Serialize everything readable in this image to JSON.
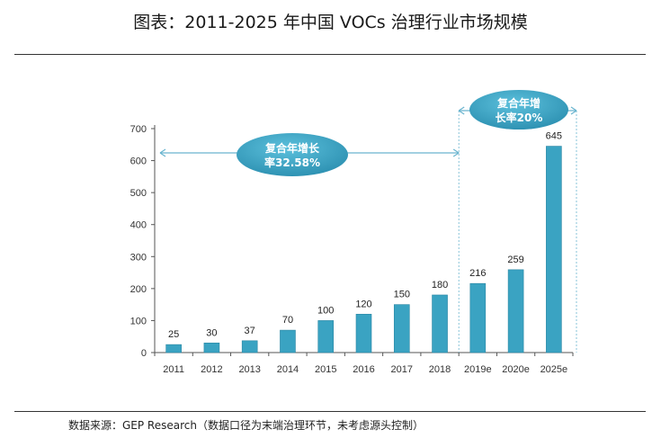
{
  "title": "图表：2011-2025 年中国 VOCs 治理行业市场规模",
  "source": "数据来源：GEP Research（数据口径为末端治理环节，未考虑源头控制）",
  "colors": {
    "bar": "#3aa3c2",
    "bar_edge": "#2a86a3",
    "axis": "#555555",
    "arrow": "#6ab5cf",
    "ellipse": "#2b8fb0"
  },
  "chart_data": {
    "type": "bar",
    "categories": [
      "2011",
      "2012",
      "2013",
      "2014",
      "2015",
      "2016",
      "2017",
      "2018",
      "2019e",
      "2020e",
      "2025e"
    ],
    "values": [
      25,
      30,
      37,
      70,
      100,
      120,
      150,
      180,
      216,
      259,
      645
    ],
    "value_labels": [
      "25",
      "30",
      "37",
      "70",
      "100",
      "120",
      "150",
      "180",
      "216",
      "259",
      "645"
    ],
    "yticks": [
      "0",
      "100",
      "200",
      "300",
      "400",
      "500",
      "600",
      "700"
    ],
    "ylim": [
      0,
      700
    ],
    "grid": false,
    "annotations": [
      {
        "line1": "复合年增长",
        "line2": "率32.58%",
        "from": "2011",
        "to": "2018"
      },
      {
        "line1": "复合年增",
        "line2": "长率20%",
        "from": "2019e",
        "to": "2025e"
      }
    ]
  }
}
